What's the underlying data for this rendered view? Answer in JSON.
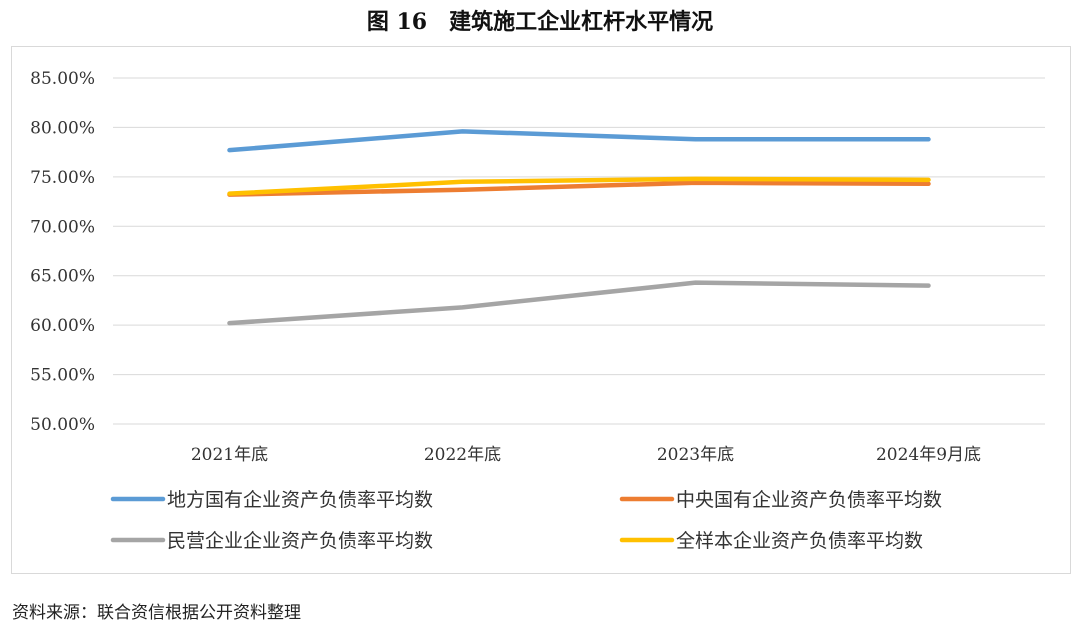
{
  "figure": {
    "number": "图 16",
    "title": "建筑施工企业杠杆水平情况"
  },
  "source": "资料来源：联合资信根据公开资料整理",
  "chart_data": {
    "type": "line",
    "categories": [
      "2021年底",
      "2022年底",
      "2023年底",
      "2024年9月底"
    ],
    "ylim": [
      50,
      85
    ],
    "yticks": [
      "50.00%",
      "55.00%",
      "60.00%",
      "65.00%",
      "70.00%",
      "75.00%",
      "80.00%",
      "85.00%"
    ],
    "ytick_values": [
      50,
      55,
      60,
      65,
      70,
      75,
      80,
      85
    ],
    "grid": true,
    "legend_position": "bottom",
    "series": [
      {
        "name": "地方国有企业资产负债率平均数",
        "color": "#5B9BD5",
        "values": [
          77.7,
          79.6,
          78.8,
          78.8
        ]
      },
      {
        "name": "中央国有企业资产负债率平均数",
        "color": "#ED7D31",
        "values": [
          73.2,
          73.7,
          74.4,
          74.3
        ]
      },
      {
        "name": "民营企业企业资产负债率平均数",
        "color": "#A5A5A5",
        "values": [
          60.2,
          61.8,
          64.3,
          64.0
        ]
      },
      {
        "name": "全样本企业资产负债率平均数",
        "color": "#FFC000",
        "values": [
          73.3,
          74.5,
          74.8,
          74.7
        ]
      }
    ]
  }
}
